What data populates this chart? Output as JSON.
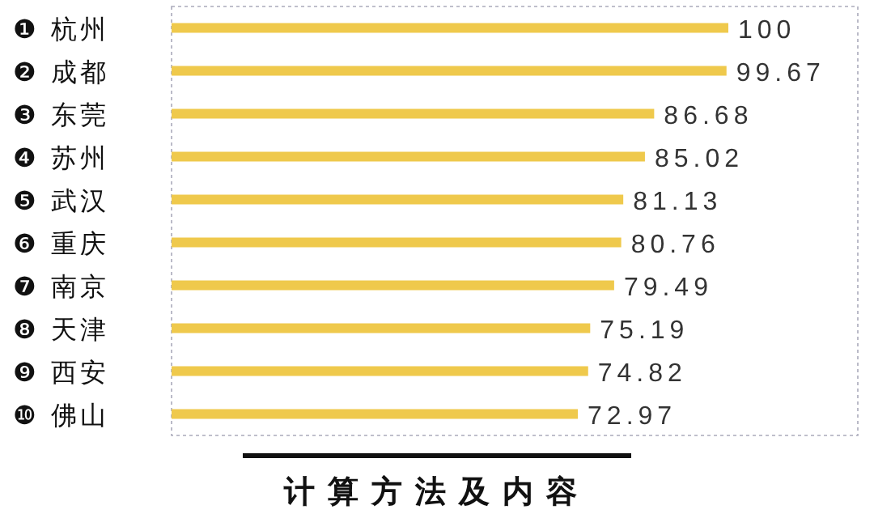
{
  "chart_data": {
    "type": "bar",
    "orientation": "horizontal",
    "data_labels": true,
    "categories": [
      "❶ 杭州",
      "❷ 成都",
      "❸ 东莞",
      "❹ 苏州",
      "❺ 武汉",
      "❻ 重庆",
      "❼ 南京",
      "❽ 天津",
      "❾ 西安",
      "❿ 佛山"
    ],
    "values": [
      100,
      99.67,
      86.68,
      85.02,
      81.13,
      80.76,
      79.49,
      75.19,
      74.82,
      72.97
    ],
    "color": "#efc94c",
    "annotations": [
      "计算方法及内容"
    ]
  }
}
